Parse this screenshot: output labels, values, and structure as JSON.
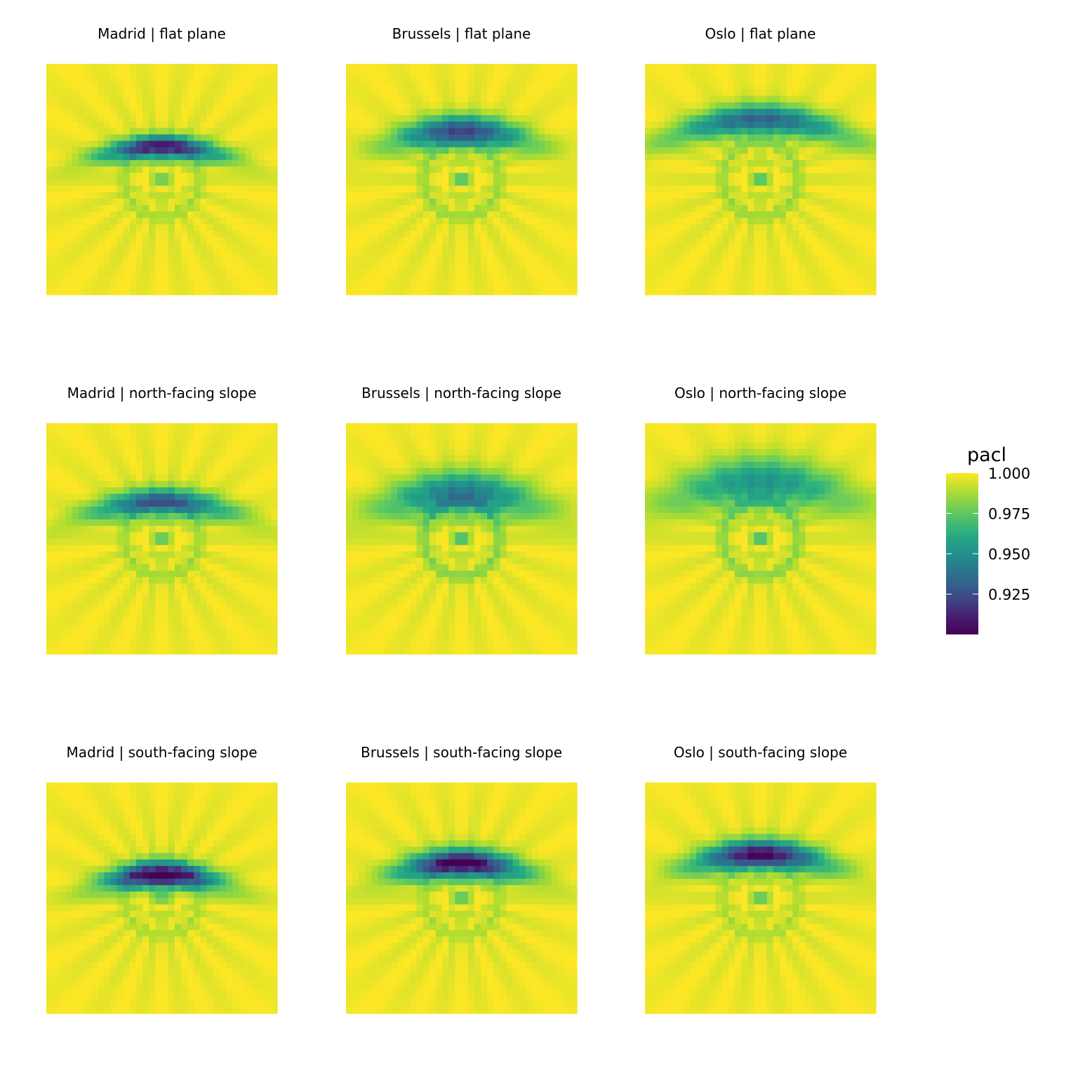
{
  "chart_data": {
    "type": "heatmap",
    "layout": "facet-grid-3x3",
    "color_scale": "viridis",
    "legend": {
      "title": "pacl",
      "placement": "right",
      "range": [
        0.9,
        1.0
      ],
      "ticks": [
        1.0,
        0.975,
        0.95,
        0.925
      ],
      "tick_labels": [
        "1.000",
        "0.975",
        "0.950",
        "0.925"
      ]
    },
    "grid": false,
    "axes_shown": false,
    "panels": [
      {
        "title": "Madrid | flat plane",
        "site": "Madrid",
        "surface": "flat plane",
        "min_value": 0.915,
        "trough_x": 0.0,
        "trough_y": 0.28,
        "trough_spread_x": 0.42,
        "trough_spread_y": 0.075,
        "ring_depth": 0.018,
        "center_depth": 0.035
      },
      {
        "title": "Brussels | flat plane",
        "site": "Brussels",
        "surface": "flat plane",
        "min_value": 0.925,
        "trough_x": 0.0,
        "trough_y": 0.42,
        "trough_spread_x": 0.45,
        "trough_spread_y": 0.1,
        "ring_depth": 0.022,
        "center_depth": 0.045
      },
      {
        "title": "Oslo | flat plane",
        "site": "Oslo",
        "surface": "flat plane",
        "min_value": 0.935,
        "trough_x": 0.0,
        "trough_y": 0.52,
        "trough_spread_x": 0.6,
        "trough_spread_y": 0.1,
        "ring_depth": 0.022,
        "center_depth": 0.045
      },
      {
        "title": "Madrid | north-facing slope",
        "site": "Madrid",
        "surface": "north-facing slope",
        "min_value": 0.935,
        "trough_x": 0.0,
        "trough_y": 0.32,
        "trough_spread_x": 0.5,
        "trough_spread_y": 0.09,
        "ring_depth": 0.02,
        "center_depth": 0.04
      },
      {
        "title": "Brussels | north-facing slope",
        "site": "Brussels",
        "surface": "north-facing slope",
        "min_value": 0.945,
        "trough_x": 0.0,
        "trough_y": 0.4,
        "trough_spread_x": 0.55,
        "trough_spread_y": 0.14,
        "ring_depth": 0.03,
        "center_depth": 0.05
      },
      {
        "title": "Oslo | north-facing slope",
        "site": "Oslo",
        "surface": "north-facing slope",
        "min_value": 0.955,
        "trough_x": 0.0,
        "trough_y": 0.5,
        "trough_spread_x": 0.65,
        "trough_spread_y": 0.16,
        "ring_depth": 0.028,
        "center_depth": 0.05
      },
      {
        "title": "Madrid | south-facing slope",
        "site": "Madrid",
        "surface": "south-facing slope",
        "min_value": 0.9,
        "trough_x": 0.0,
        "trough_y": 0.2,
        "trough_spread_x": 0.38,
        "trough_spread_y": 0.085,
        "ring_depth": 0.015,
        "center_depth": 0.03
      },
      {
        "title": "Brussels | south-facing slope",
        "site": "Brussels",
        "surface": "south-facing slope",
        "min_value": 0.905,
        "trough_x": 0.0,
        "trough_y": 0.3,
        "trough_spread_x": 0.42,
        "trough_spread_y": 0.095,
        "ring_depth": 0.016,
        "center_depth": 0.04
      },
      {
        "title": "Oslo | south-facing slope",
        "site": "Oslo",
        "surface": "south-facing slope",
        "min_value": 0.908,
        "trough_x": 0.0,
        "trough_y": 0.38,
        "trough_spread_x": 0.45,
        "trough_spread_y": 0.095,
        "ring_depth": 0.016,
        "center_depth": 0.04
      }
    ]
  }
}
